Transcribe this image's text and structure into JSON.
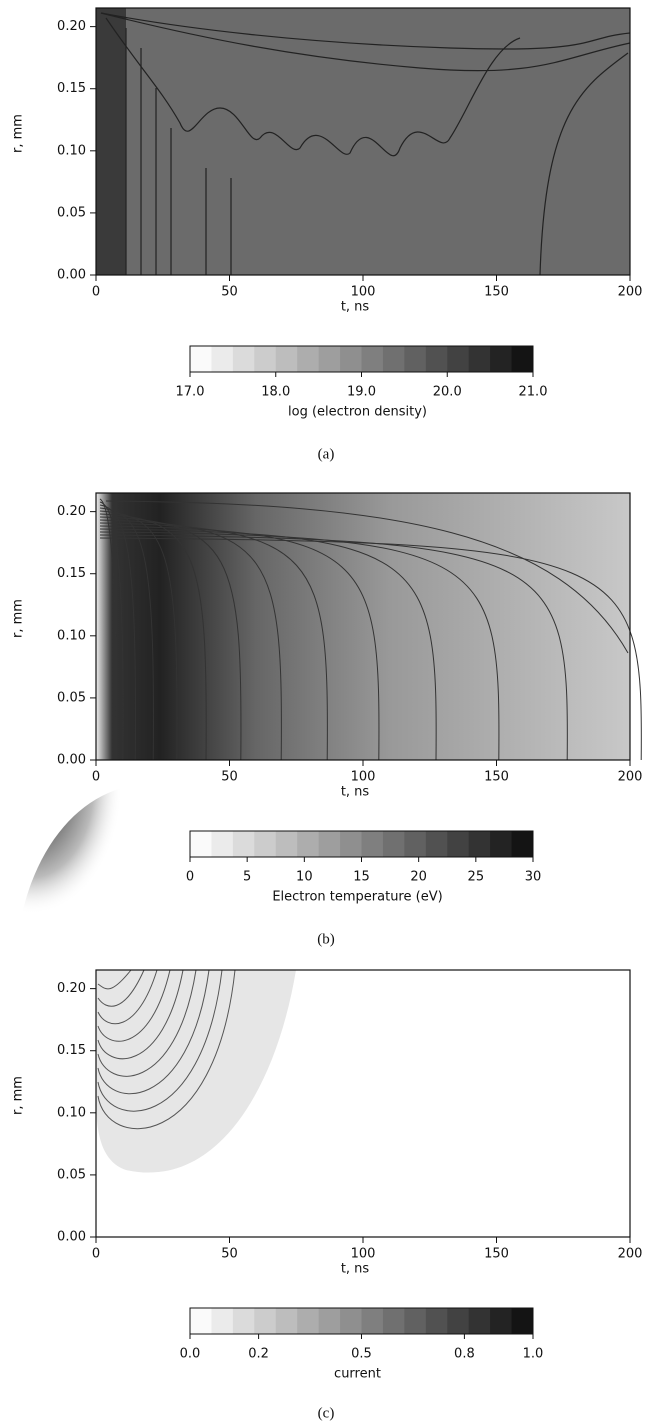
{
  "chart_data": [
    {
      "type": "contour",
      "xlabel": "t, ns",
      "ylabel": "r, mm",
      "caption": "(a)",
      "xlim": [
        0,
        200
      ],
      "xticks": [
        0,
        50,
        100,
        150,
        200
      ],
      "ylim": [
        0,
        0.215
      ],
      "yticks": [
        {
          "value": 0,
          "label": "0.00"
        },
        {
          "value": 0.05,
          "label": "0.05"
        },
        {
          "value": 0.1,
          "label": "0.10"
        },
        {
          "value": 0.15,
          "label": "0.15"
        },
        {
          "value": 0.2,
          "label": "0.20"
        }
      ],
      "colorbar": {
        "label": "log (electron density)",
        "lim": [
          17,
          21
        ],
        "ticks": [
          {
            "value": 17,
            "label": "17.0"
          },
          {
            "value": 18,
            "label": "18.0"
          },
          {
            "value": 19,
            "label": "19.0"
          },
          {
            "value": 20,
            "label": "20.0"
          },
          {
            "value": 21,
            "label": "21.0"
          }
        ]
      }
    },
    {
      "type": "contour",
      "xlabel": "t, ns",
      "ylabel": "r, mm",
      "caption": "(b)",
      "xlim": [
        0,
        200
      ],
      "xticks": [
        0,
        50,
        100,
        150,
        200
      ],
      "ylim": [
        0,
        0.215
      ],
      "yticks": [
        {
          "value": 0,
          "label": "0.00"
        },
        {
          "value": 0.05,
          "label": "0.05"
        },
        {
          "value": 0.1,
          "label": "0.10"
        },
        {
          "value": 0.15,
          "label": "0.15"
        },
        {
          "value": 0.2,
          "label": "0.20"
        }
      ],
      "colorbar": {
        "label": "Electron temperature (eV)",
        "lim": [
          0,
          30
        ],
        "ticks": [
          0,
          5,
          10,
          15,
          20,
          25,
          30
        ]
      }
    },
    {
      "type": "contour",
      "xlabel": "t, ns",
      "ylabel": "r, mm",
      "caption": "(c)",
      "xlim": [
        0,
        200
      ],
      "xticks": [
        0,
        50,
        100,
        150,
        200
      ],
      "ylim": [
        0,
        0.215
      ],
      "yticks": [
        {
          "value": 0,
          "label": "0.00"
        },
        {
          "value": 0.05,
          "label": "0.05"
        },
        {
          "value": 0.1,
          "label": "0.10"
        },
        {
          "value": 0.15,
          "label": "0.15"
        },
        {
          "value": 0.2,
          "label": "0.20"
        }
      ],
      "colorbar": {
        "label": "current",
        "lim": [
          0,
          1
        ],
        "ticks": [
          {
            "value": 0,
            "label": "0.0"
          },
          {
            "value": 0.2,
            "label": "0.2"
          },
          {
            "value": 0.5,
            "label": "0.5"
          },
          {
            "value": 0.8,
            "label": "0.8"
          },
          {
            "value": 1,
            "label": "1.0"
          }
        ]
      }
    }
  ]
}
